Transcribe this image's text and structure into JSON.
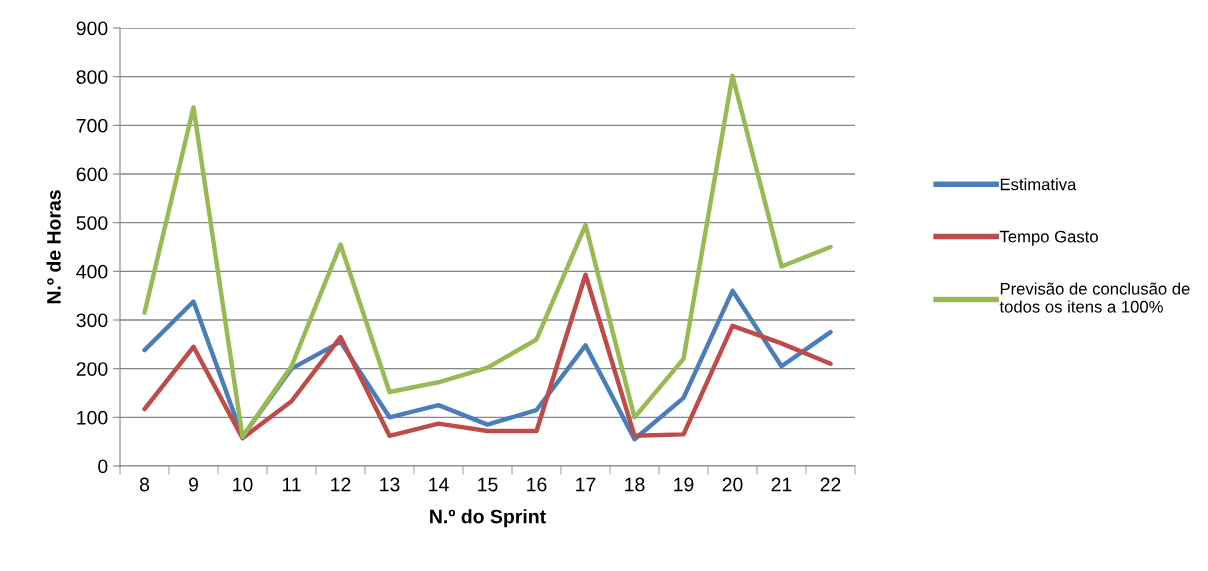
{
  "chart_data": {
    "type": "line",
    "xlabel": "N.º do Sprint",
    "ylabel": "N.º de Horas",
    "categories": [
      "8",
      "9",
      "10",
      "11",
      "12",
      "13",
      "14",
      "15",
      "16",
      "17",
      "18",
      "19",
      "20",
      "21",
      "22"
    ],
    "series": [
      {
        "name": "Estimativa",
        "color": "#4a7ebb",
        "values": [
          238,
          338,
          60,
          200,
          255,
          100,
          125,
          85,
          115,
          248,
          55,
          140,
          360,
          205,
          275
        ]
      },
      {
        "name": "Tempo Gasto",
        "color": "#be4b48",
        "values": [
          117,
          245,
          57,
          133,
          265,
          62,
          87,
          72,
          72,
          393,
          62,
          65,
          288,
          252,
          210
        ]
      },
      {
        "name": "Previsão de conclusão de todos os itens a 100%",
        "color": "#98b954",
        "values": [
          315,
          737,
          60,
          205,
          455,
          152,
          172,
          202,
          260,
          495,
          100,
          220,
          802,
          410,
          450
        ]
      }
    ],
    "ylim": [
      0,
      900
    ],
    "yticks": [
      0,
      100,
      200,
      300,
      400,
      500,
      600,
      700,
      800,
      900
    ],
    "grid": "y",
    "legend": "right",
    "marker": "none",
    "line_style": "solid"
  }
}
